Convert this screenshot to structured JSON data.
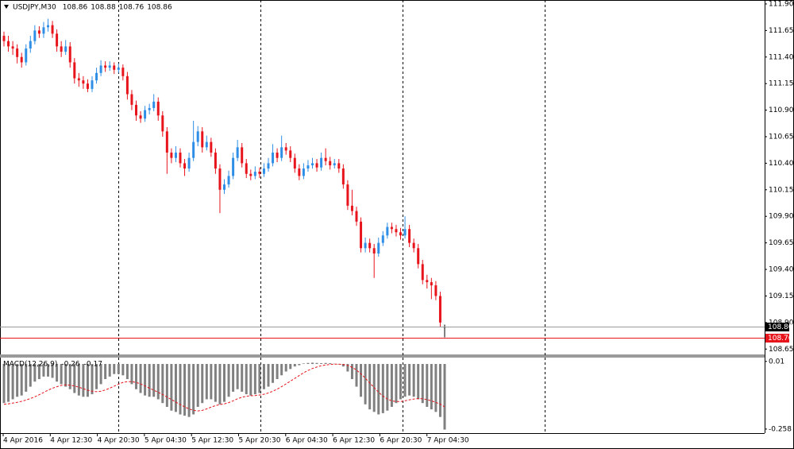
{
  "chart_data": [
    {
      "type": "candlestick",
      "symbol": "USDJPY,M30",
      "header_values": [
        108.86,
        108.88,
        108.76,
        108.86
      ],
      "up_color": "#2f8fe6",
      "down_color": "#e8141c",
      "doji_color": "#000000",
      "ylim": [
        108.607,
        111.937
      ],
      "yticks": [
        {
          "value": 111.9,
          "label": "111.90"
        },
        111.65,
        {
          "value": 111.4,
          "label": "111.40"
        },
        111.15,
        {
          "value": 110.9,
          "label": "110.90"
        },
        110.65,
        {
          "value": 110.4,
          "label": "110.40"
        },
        110.15,
        {
          "value": 109.9,
          "label": "109.90"
        },
        109.65,
        {
          "value": 109.4,
          "label": "109.40"
        },
        109.15,
        {
          "value": 108.9,
          "label": "108.90"
        },
        108.65
      ],
      "price_lines": [
        {
          "value": 108.86,
          "color": "#9a9a9a",
          "tag_color": "#000000"
        },
        {
          "value": 108.76,
          "color": "#e8141c",
          "tag_color": "#e8141c"
        }
      ],
      "time_labels": [
        "4 Apr 2016",
        "4 Apr 12:30",
        "4 Apr 20:30",
        "5 Apr 04:30",
        "5 Apr 12:30",
        "5 Apr 20:30",
        "6 Apr 04:30",
        "6 Apr 12:30",
        "6 Apr 20:30",
        "7 Apr 04:30"
      ],
      "candles": [
        [
          111.6,
          111.64,
          111.5,
          111.55
        ],
        [
          111.55,
          111.6,
          111.45,
          111.5
        ],
        [
          111.5,
          111.55,
          111.42,
          111.48
        ],
        [
          111.48,
          111.52,
          111.34,
          111.4
        ],
        [
          111.4,
          111.44,
          111.3,
          111.35
        ],
        [
          111.35,
          111.52,
          111.32,
          111.48
        ],
        [
          111.48,
          111.6,
          111.44,
          111.55
        ],
        [
          111.55,
          111.7,
          111.52,
          111.65
        ],
        [
          111.65,
          111.69,
          111.58,
          111.62
        ],
        [
          111.62,
          111.73,
          111.58,
          111.68
        ],
        [
          111.68,
          111.76,
          111.64,
          111.7
        ],
        [
          111.7,
          111.74,
          111.58,
          111.62
        ],
        [
          111.62,
          111.66,
          111.45,
          111.5
        ],
        [
          111.5,
          111.55,
          111.4,
          111.45
        ],
        [
          111.45,
          111.56,
          111.42,
          111.5
        ],
        [
          111.5,
          111.54,
          111.3,
          111.35
        ],
        [
          111.35,
          111.39,
          111.15,
          111.2
        ],
        [
          111.2,
          111.25,
          111.12,
          111.18
        ],
        [
          111.18,
          111.22,
          111.1,
          111.15
        ],
        [
          111.15,
          111.19,
          111.07,
          111.1
        ],
        [
          111.1,
          111.22,
          111.07,
          111.18
        ],
        [
          111.18,
          111.3,
          111.15,
          111.25
        ],
        [
          111.25,
          111.37,
          111.22,
          111.32
        ],
        [
          111.32,
          111.36,
          111.26,
          111.3
        ],
        [
          111.3,
          111.36,
          111.27,
          111.32
        ],
        [
          111.32,
          111.35,
          111.24,
          111.28
        ],
        [
          111.28,
          111.34,
          111.25,
          111.3
        ],
        [
          111.3,
          111.33,
          111.18,
          111.22
        ],
        [
          111.22,
          111.26,
          111.0,
          111.05
        ],
        [
          111.05,
          111.09,
          110.9,
          110.95
        ],
        [
          110.95,
          110.99,
          110.8,
          110.85
        ],
        [
          110.85,
          110.89,
          110.78,
          110.82
        ],
        [
          110.82,
          110.94,
          110.79,
          110.9
        ],
        [
          110.9,
          110.96,
          110.86,
          110.92
        ],
        [
          110.92,
          111.05,
          110.89,
          110.98
        ],
        [
          110.98,
          111.02,
          110.8,
          110.85
        ],
        [
          110.85,
          110.89,
          110.65,
          110.7
        ],
        [
          110.7,
          110.74,
          110.3,
          110.5
        ],
        [
          110.5,
          110.54,
          110.4,
          110.45
        ],
        [
          110.45,
          110.56,
          110.41,
          110.5
        ],
        [
          110.5,
          110.54,
          110.36,
          110.4
        ],
        [
          110.4,
          110.44,
          110.28,
          110.35
        ],
        [
          110.35,
          110.5,
          110.32,
          110.45
        ],
        [
          110.45,
          110.8,
          110.42,
          110.6
        ],
        [
          110.6,
          110.75,
          110.56,
          110.7
        ],
        [
          110.7,
          110.74,
          110.5,
          110.55
        ],
        [
          110.55,
          110.66,
          110.52,
          110.6
        ],
        [
          110.6,
          110.64,
          110.46,
          110.5
        ],
        [
          110.5,
          110.54,
          110.3,
          110.35
        ],
        [
          110.35,
          110.39,
          109.93,
          110.15
        ],
        [
          110.15,
          110.25,
          110.11,
          110.2
        ],
        [
          110.2,
          110.33,
          110.17,
          110.28
        ],
        [
          110.28,
          110.5,
          110.25,
          110.45
        ],
        [
          110.45,
          110.62,
          110.42,
          110.55
        ],
        [
          110.55,
          110.59,
          110.36,
          110.4
        ],
        [
          110.4,
          110.44,
          110.26,
          110.3
        ],
        [
          110.3,
          110.34,
          110.24,
          110.28
        ],
        [
          110.28,
          110.37,
          110.25,
          110.32
        ],
        [
          110.32,
          110.36,
          110.26,
          110.3
        ],
        [
          110.3,
          110.4,
          110.27,
          110.35
        ],
        [
          110.35,
          110.45,
          110.32,
          110.4
        ],
        [
          110.4,
          110.58,
          110.37,
          110.5
        ],
        [
          110.5,
          110.54,
          110.41,
          110.45
        ],
        [
          110.45,
          110.66,
          110.42,
          110.55
        ],
        [
          110.55,
          110.59,
          110.48,
          110.52
        ],
        [
          110.52,
          110.56,
          110.41,
          110.45
        ],
        [
          110.45,
          110.49,
          110.31,
          110.35
        ],
        [
          110.35,
          110.39,
          110.24,
          110.28
        ],
        [
          110.28,
          110.4,
          110.25,
          110.35
        ],
        [
          110.35,
          110.43,
          110.32,
          110.38
        ],
        [
          110.38,
          110.45,
          110.35,
          110.4
        ],
        [
          110.4,
          110.44,
          110.32,
          110.36
        ],
        [
          110.36,
          110.5,
          110.33,
          110.45
        ],
        [
          110.45,
          110.54,
          110.38,
          110.42
        ],
        [
          110.42,
          110.46,
          110.34,
          110.38
        ],
        [
          110.38,
          110.44,
          110.35,
          110.4
        ],
        [
          110.4,
          110.44,
          110.31,
          110.35
        ],
        [
          110.35,
          110.39,
          110.16,
          110.2
        ],
        [
          110.2,
          110.24,
          109.96,
          110.0
        ],
        [
          110.0,
          110.15,
          109.91,
          109.95
        ],
        [
          109.95,
          109.99,
          109.81,
          109.85
        ],
        [
          109.85,
          109.89,
          109.56,
          109.6
        ],
        [
          109.6,
          109.7,
          109.56,
          109.65
        ],
        [
          109.65,
          109.69,
          109.56,
          109.6
        ],
        [
          109.6,
          109.64,
          109.32,
          109.55
        ],
        [
          109.55,
          109.7,
          109.52,
          109.65
        ],
        [
          109.65,
          109.76,
          109.62,
          109.72
        ],
        [
          109.72,
          109.84,
          109.69,
          109.8
        ],
        [
          109.8,
          109.84,
          109.74,
          109.78
        ],
        [
          109.78,
          109.82,
          109.71,
          109.75
        ],
        [
          109.75,
          109.79,
          109.68,
          109.72
        ],
        [
          109.72,
          109.9,
          109.69,
          109.78
        ],
        [
          109.78,
          109.82,
          109.61,
          109.65
        ],
        [
          109.65,
          109.69,
          109.56,
          109.6
        ],
        [
          109.6,
          109.64,
          109.41,
          109.45
        ],
        [
          109.45,
          109.49,
          109.26,
          109.3
        ],
        [
          109.3,
          109.35,
          109.22,
          109.28
        ],
        [
          109.28,
          109.32,
          109.12,
          109.25
        ],
        [
          109.25,
          109.29,
          109.11,
          109.15
        ],
        [
          109.15,
          109.19,
          108.86,
          108.9
        ],
        [
          108.86,
          108.88,
          108.76,
          108.86
        ]
      ]
    },
    {
      "type": "macd",
      "name": "MACD(12,26,9)",
      "histogram_color": "#808080",
      "signal_color": "#e8141c",
      "ylim": [
        -0.274,
        0.022
      ],
      "yticks": [
        0.01,
        -0.258
      ],
      "histogram": [
        -0.155,
        -0.15,
        -0.14,
        -0.13,
        -0.125,
        -0.11,
        -0.09,
        -0.07,
        -0.06,
        -0.05,
        -0.05,
        -0.055,
        -0.07,
        -0.08,
        -0.09,
        -0.1,
        -0.115,
        -0.125,
        -0.13,
        -0.13,
        -0.12,
        -0.1,
        -0.08,
        -0.06,
        -0.05,
        -0.04,
        -0.04,
        -0.045,
        -0.06,
        -0.08,
        -0.1,
        -0.115,
        -0.125,
        -0.13,
        -0.13,
        -0.14,
        -0.155,
        -0.17,
        -0.185,
        -0.19,
        -0.2,
        -0.205,
        -0.21,
        -0.2,
        -0.17,
        -0.155,
        -0.14,
        -0.14,
        -0.15,
        -0.16,
        -0.15,
        -0.13,
        -0.11,
        -0.1,
        -0.11,
        -0.12,
        -0.125,
        -0.12,
        -0.115,
        -0.1,
        -0.09,
        -0.075,
        -0.06,
        -0.045,
        -0.03,
        -0.02,
        -0.01,
        -0.005,
        0.002,
        0.004,
        0.005,
        0.004,
        0.003,
        0.004,
        0.003,
        0.001,
        -0.002,
        -0.01,
        -0.03,
        -0.06,
        -0.09,
        -0.13,
        -0.16,
        -0.18,
        -0.19,
        -0.2,
        -0.195,
        -0.185,
        -0.17,
        -0.155,
        -0.14,
        -0.13,
        -0.125,
        -0.13,
        -0.14,
        -0.155,
        -0.17,
        -0.18,
        -0.19,
        -0.21,
        -0.26
      ],
      "signal": [
        -0.16,
        -0.158,
        -0.155,
        -0.152,
        -0.148,
        -0.143,
        -0.137,
        -0.13,
        -0.122,
        -0.113,
        -0.104,
        -0.096,
        -0.09,
        -0.085,
        -0.083,
        -0.084,
        -0.087,
        -0.092,
        -0.098,
        -0.104,
        -0.108,
        -0.11,
        -0.108,
        -0.103,
        -0.096,
        -0.088,
        -0.08,
        -0.073,
        -0.07,
        -0.07,
        -0.073,
        -0.079,
        -0.087,
        -0.096,
        -0.104,
        -0.112,
        -0.121,
        -0.131,
        -0.141,
        -0.151,
        -0.161,
        -0.17,
        -0.178,
        -0.184,
        -0.186,
        -0.184,
        -0.178,
        -0.171,
        -0.165,
        -0.161,
        -0.158,
        -0.153,
        -0.146,
        -0.138,
        -0.132,
        -0.128,
        -0.126,
        -0.125,
        -0.123,
        -0.12,
        -0.115,
        -0.108,
        -0.1,
        -0.09,
        -0.079,
        -0.068,
        -0.057,
        -0.046,
        -0.035,
        -0.026,
        -0.018,
        -0.012,
        -0.007,
        -0.004,
        -0.002,
        -0.001,
        -0.001,
        -0.002,
        -0.006,
        -0.013,
        -0.024,
        -0.039,
        -0.056,
        -0.075,
        -0.094,
        -0.112,
        -0.127,
        -0.139,
        -0.146,
        -0.149,
        -0.149,
        -0.146,
        -0.142,
        -0.139,
        -0.137,
        -0.138,
        -0.141,
        -0.146,
        -0.152,
        -0.159,
        -0.17
      ]
    }
  ]
}
